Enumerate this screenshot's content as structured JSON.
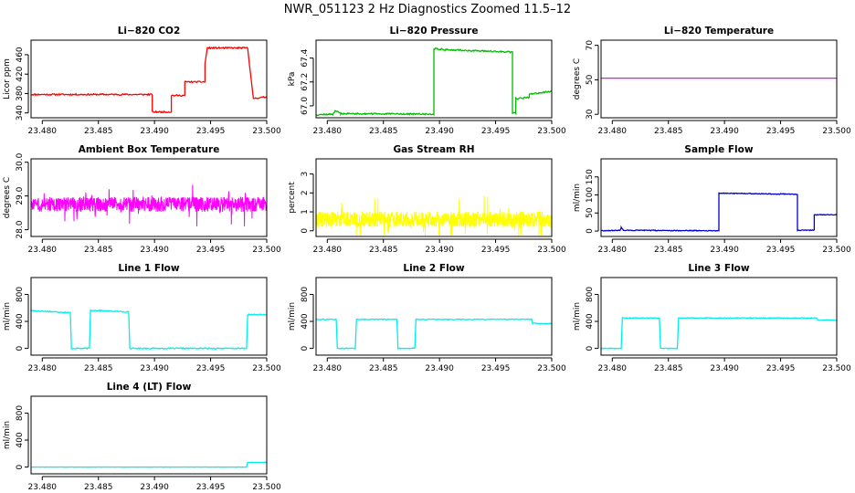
{
  "figure": {
    "title": "NWR_051123  2 Hz Diagnostics Zoomed 11.5–12"
  },
  "chart_data": [
    {
      "type": "line",
      "title": "Li−820 CO2",
      "ylabel": "Licor ppm",
      "color": "#ff0000",
      "xlim": [
        23.479,
        23.5
      ],
      "ylim": [
        330,
        490
      ],
      "xticks": [
        23.48,
        23.485,
        23.49,
        23.495,
        23.5
      ],
      "xticklabels": [
        "23.480",
        "23.485",
        "23.490",
        "23.495",
        "23.500"
      ],
      "yticks": [
        340,
        380,
        420,
        460
      ],
      "yticklabels": [
        "340",
        "380",
        "420",
        "460"
      ],
      "noise": 1.5,
      "noise_seed": 11,
      "segments": [
        [
          23.479,
          378
        ],
        [
          23.4898,
          378
        ],
        [
          23.4898,
          342
        ],
        [
          23.4915,
          342
        ],
        [
          23.4915,
          376
        ],
        [
          23.4927,
          376
        ],
        [
          23.4927,
          404
        ],
        [
          23.4945,
          404
        ],
        [
          23.4945,
          440
        ],
        [
          23.4947,
          474
        ],
        [
          23.4983,
          474
        ],
        [
          23.4988,
          370
        ],
        [
          23.5,
          373
        ]
      ]
    },
    {
      "type": "line",
      "title": "Li−820 Pressure",
      "ylabel": "kPa",
      "color": "#00bb00",
      "xlim": [
        23.479,
        23.5
      ],
      "ylim": [
        66.9,
        67.55
      ],
      "xticks": [
        23.48,
        23.485,
        23.49,
        23.495,
        23.5
      ],
      "xticklabels": [
        "23.480",
        "23.485",
        "23.490",
        "23.495",
        "23.500"
      ],
      "yticks": [
        67.0,
        67.2,
        67.4
      ],
      "yticklabels": [
        "67.0",
        "67.2",
        "67.4"
      ],
      "noise": 0.006,
      "noise_seed": 12,
      "segments": [
        [
          23.479,
          66.925
        ],
        [
          23.4805,
          66.93
        ],
        [
          23.4807,
          66.96
        ],
        [
          23.4812,
          66.935
        ],
        [
          23.4895,
          66.93
        ],
        [
          23.4895,
          67.48
        ],
        [
          23.4905,
          67.47
        ],
        [
          23.4965,
          67.45
        ],
        [
          23.4965,
          66.94
        ],
        [
          23.4968,
          66.94
        ],
        [
          23.4968,
          67.06
        ],
        [
          23.498,
          67.07
        ],
        [
          23.498,
          67.1
        ],
        [
          23.5,
          67.12
        ]
      ]
    },
    {
      "type": "line",
      "title": "Li−820 Temperature",
      "ylabel": "degrees C",
      "color": "#ff00ff",
      "xlim": [
        23.479,
        23.5
      ],
      "ylim": [
        28,
        73
      ],
      "xticks": [
        23.48,
        23.485,
        23.49,
        23.495,
        23.5
      ],
      "xticklabels": [
        "23.480",
        "23.485",
        "23.490",
        "23.495",
        "23.500"
      ],
      "yticks": [
        30,
        50,
        70
      ],
      "yticklabels": [
        "30",
        "50",
        "70"
      ],
      "noise": 0,
      "noise_seed": 13,
      "segments": [
        [
          23.479,
          51
        ],
        [
          23.5,
          51
        ]
      ]
    },
    {
      "type": "line",
      "title": "Ambient Box Temperature",
      "ylabel": "degrees C",
      "color": "#ff00ff",
      "xlim": [
        23.479,
        23.5
      ],
      "ylim": [
        27.8,
        30.1
      ],
      "xticks": [
        23.48,
        23.485,
        23.49,
        23.495,
        23.5
      ],
      "xticklabels": [
        "23.480",
        "23.485",
        "23.490",
        "23.495",
        "23.500"
      ],
      "yticks": [
        28.0,
        29.0,
        30.0
      ],
      "yticklabels": [
        "28.0",
        "29.0",
        "30.0"
      ],
      "noise": 0.22,
      "noise_seed": 14,
      "dense": true,
      "segments": [
        [
          23.479,
          28.75
        ],
        [
          23.5,
          28.75
        ]
      ]
    },
    {
      "type": "line",
      "title": "Gas Stream RH",
      "ylabel": "percent",
      "color": "#ffff00",
      "xlim": [
        23.479,
        23.5
      ],
      "ylim": [
        -0.3,
        3.8
      ],
      "xticks": [
        23.48,
        23.485,
        23.49,
        23.495,
        23.5
      ],
      "xticklabels": [
        "23.480",
        "23.485",
        "23.490",
        "23.495",
        "23.500"
      ],
      "yticks": [
        0,
        1,
        2,
        3
      ],
      "yticklabels": [
        "0",
        "1",
        "2",
        "3"
      ],
      "noise": 0.42,
      "noise_seed": 15,
      "dense": true,
      "floor": -0.25,
      "segments": [
        [
          23.479,
          0.6
        ],
        [
          23.5,
          0.6
        ]
      ]
    },
    {
      "type": "line",
      "title": "Sample Flow",
      "ylabel": "ml/min",
      "color": "#0000cc",
      "xlim": [
        23.479,
        23.5
      ],
      "ylim": [
        -15,
        200
      ],
      "xticks": [
        23.48,
        23.485,
        23.49,
        23.495,
        23.5
      ],
      "xticklabels": [
        "23.480",
        "23.485",
        "23.490",
        "23.495",
        "23.500"
      ],
      "yticks": [
        0,
        50,
        100,
        150
      ],
      "yticklabels": [
        "0",
        "50",
        "100",
        "150"
      ],
      "noise": 1.2,
      "noise_seed": 16,
      "segments": [
        [
          23.479,
          1
        ],
        [
          23.4807,
          2
        ],
        [
          23.4808,
          10
        ],
        [
          23.481,
          2
        ],
        [
          23.4895,
          1
        ],
        [
          23.4895,
          105
        ],
        [
          23.4965,
          102
        ],
        [
          23.4965,
          2
        ],
        [
          23.498,
          2
        ],
        [
          23.498,
          45
        ],
        [
          23.5,
          45
        ]
      ]
    },
    {
      "type": "line",
      "title": "Line 1 Flow",
      "ylabel": "ml/min",
      "color": "#00eeee",
      "xlim": [
        23.479,
        23.5
      ],
      "ylim": [
        -100,
        1050
      ],
      "xticks": [
        23.48,
        23.485,
        23.49,
        23.495,
        23.5
      ],
      "xticklabels": [
        "23.480",
        "23.485",
        "23.490",
        "23.495",
        "23.500"
      ],
      "yticks": [
        0,
        400,
        800
      ],
      "yticklabels": [
        "0",
        "400",
        "800"
      ],
      "noise": 8,
      "noise_seed": 17,
      "segments": [
        [
          23.479,
          560
        ],
        [
          23.4825,
          530
        ],
        [
          23.4826,
          0
        ],
        [
          23.4842,
          0
        ],
        [
          23.4843,
          565
        ],
        [
          23.4877,
          540
        ],
        [
          23.4878,
          0
        ],
        [
          23.4982,
          0
        ],
        [
          23.4983,
          500
        ],
        [
          23.5,
          500
        ]
      ]
    },
    {
      "type": "line",
      "title": "Line 2 Flow",
      "ylabel": "ml/min",
      "color": "#00eeee",
      "xlim": [
        23.479,
        23.5
      ],
      "ylim": [
        -100,
        1050
      ],
      "xticks": [
        23.48,
        23.485,
        23.49,
        23.495,
        23.5
      ],
      "xticklabels": [
        "23.480",
        "23.485",
        "23.490",
        "23.495",
        "23.500"
      ],
      "yticks": [
        0,
        400,
        800
      ],
      "yticklabels": [
        "0",
        "400",
        "800"
      ],
      "noise": 6,
      "noise_seed": 18,
      "segments": [
        [
          23.479,
          430
        ],
        [
          23.4808,
          430
        ],
        [
          23.4809,
          0
        ],
        [
          23.4825,
          0
        ],
        [
          23.4826,
          430
        ],
        [
          23.4862,
          430
        ],
        [
          23.4863,
          0
        ],
        [
          23.4878,
          0
        ],
        [
          23.4879,
          430
        ],
        [
          23.4982,
          430
        ],
        [
          23.4983,
          370
        ],
        [
          23.5,
          370
        ]
      ]
    },
    {
      "type": "line",
      "title": "Line 3 Flow",
      "ylabel": "ml/min",
      "color": "#00eeee",
      "xlim": [
        23.479,
        23.5
      ],
      "ylim": [
        -100,
        1050
      ],
      "xticks": [
        23.48,
        23.485,
        23.49,
        23.495,
        23.5
      ],
      "xticklabels": [
        "23.480",
        "23.485",
        "23.490",
        "23.495",
        "23.500"
      ],
      "yticks": [
        0,
        400,
        800
      ],
      "yticklabels": [
        "0",
        "400",
        "800"
      ],
      "noise": 6,
      "noise_seed": 19,
      "segments": [
        [
          23.479,
          0
        ],
        [
          23.4808,
          0
        ],
        [
          23.4809,
          450
        ],
        [
          23.4842,
          450
        ],
        [
          23.4843,
          0
        ],
        [
          23.4858,
          0
        ],
        [
          23.4859,
          450
        ],
        [
          23.4982,
          450
        ],
        [
          23.4983,
          420
        ],
        [
          23.5,
          420
        ]
      ]
    },
    {
      "type": "line",
      "title": "Line 4 (LT) Flow",
      "ylabel": "ml/min",
      "color": "#00eeee",
      "xlim": [
        23.479,
        23.5
      ],
      "ylim": [
        -100,
        1050
      ],
      "xticks": [
        23.48,
        23.485,
        23.49,
        23.495,
        23.5
      ],
      "xticklabels": [
        "23.480",
        "23.485",
        "23.490",
        "23.495",
        "23.500"
      ],
      "yticks": [
        0,
        400,
        800
      ],
      "yticklabels": [
        "0",
        "400",
        "800"
      ],
      "noise": 2,
      "noise_seed": 20,
      "segments": [
        [
          23.479,
          0
        ],
        [
          23.4982,
          0
        ],
        [
          23.4983,
          70
        ],
        [
          23.5,
          70
        ]
      ]
    }
  ]
}
